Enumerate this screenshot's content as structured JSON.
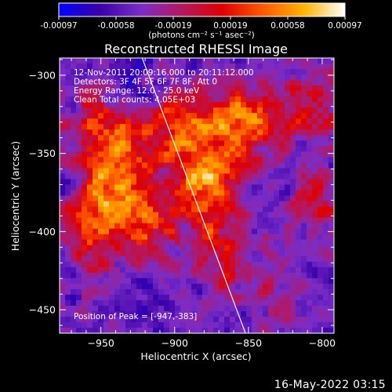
{
  "chart_data": {
    "type": "heatmap",
    "title": "Reconstructed RHESSI Image",
    "xlabel": "Heliocentric X (arcsec)",
    "ylabel": "Heliocentric Y (arcsec)",
    "xlim": [
      -978,
      -792
    ],
    "ylim": [
      -465,
      -289
    ],
    "x_ticks": [
      -950,
      -900,
      -850,
      -800
    ],
    "y_ticks": [
      -300,
      -350,
      -400,
      -450
    ],
    "colorbar": {
      "min": -0.00097,
      "max": 0.00097,
      "ticks": [
        "-0.00097",
        "-0.00058",
        "-0.00019",
        "0.00019",
        "0.00058",
        "0.00097"
      ],
      "unit_label": "(photons cm⁻² s⁻¹ asec⁻²)",
      "colormap": [
        "#0000ff",
        "#3a00a8",
        "#7a2dc8",
        "#b41860",
        "#e00000",
        "#ff5a00",
        "#ffb400",
        "#ffffff"
      ]
    },
    "annotations": [
      "12-Nov-2011 20:09:16.000 to 20:11:12.000",
      "Detectors: 3F 4F 5F 6F 7F 8F, Att 0",
      "Energy Range: 12.0 - 25.0 keV",
      "Clean    Total counts: 4.05E+03"
    ],
    "peak_label": "Position of Peak = [-947,-383]",
    "peak": [
      -947,
      -383
    ],
    "limb_line": [
      [
        -922,
        -289
      ],
      [
        -852,
        -465
      ]
    ],
    "bright_regions": [
      {
        "x": -947,
        "y": -383,
        "amp": 1.0
      },
      {
        "x": -880,
        "y": -375,
        "amp": 0.95
      },
      {
        "x": -893,
        "y": -335,
        "amp": 0.9
      },
      {
        "x": -935,
        "y": -350,
        "amp": 0.8
      },
      {
        "x": -862,
        "y": -340,
        "amp": 0.8
      },
      {
        "x": -845,
        "y": -325,
        "amp": 0.55
      },
      {
        "x": -915,
        "y": -395,
        "amp": 0.6
      },
      {
        "x": -870,
        "y": -415,
        "amp": 0.55
      },
      {
        "x": -955,
        "y": -330,
        "amp": 0.5
      },
      {
        "x": -805,
        "y": -320,
        "amp": 0.5
      },
      {
        "x": -805,
        "y": -380,
        "amp": 0.45
      },
      {
        "x": -835,
        "y": -440,
        "amp": 0.35
      },
      {
        "x": -960,
        "y": -410,
        "amp": 0.4
      }
    ]
  },
  "footer": {
    "date_stamp": "16-May-2022 03:15"
  }
}
